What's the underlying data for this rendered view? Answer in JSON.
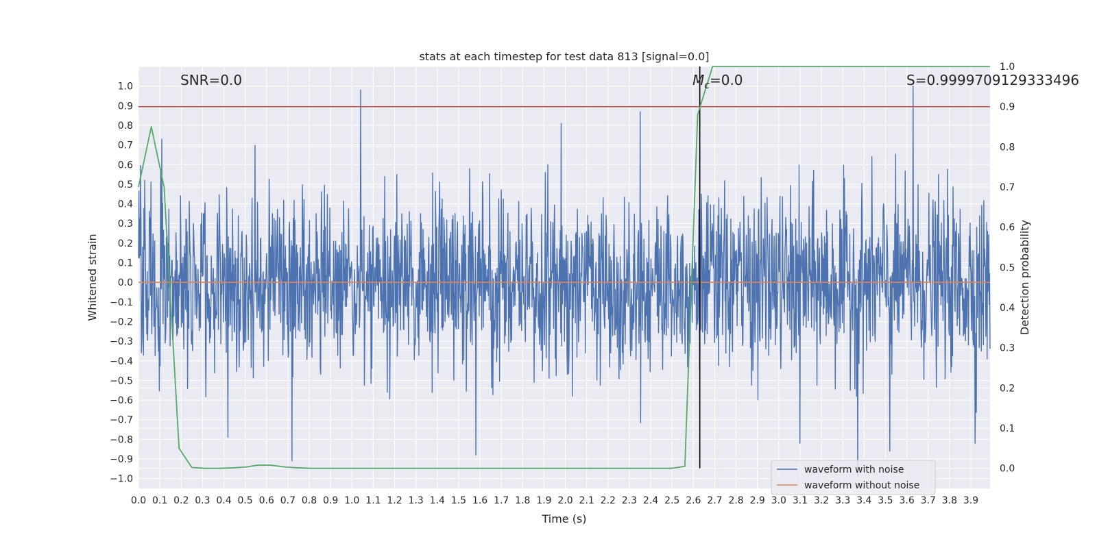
{
  "chart_data": {
    "type": "line",
    "title": "stats at each timestep for test data 813 [signal=0.0]",
    "xlabel": "Time (s)",
    "ylabel": "Whitened strain",
    "y2label": "Detection probability",
    "xlim": [
      0.0,
      3.99
    ],
    "ylim": [
      -1.05,
      1.1
    ],
    "y2lim": [
      -0.05,
      1.0
    ],
    "x_ticks": [
      0.0,
      0.1,
      0.2,
      0.3,
      0.4,
      0.5,
      0.6,
      0.7,
      0.8,
      0.9,
      1.0,
      1.1,
      1.2,
      1.3,
      1.4,
      1.5,
      1.6,
      1.7,
      1.8,
      1.9,
      2.0,
      2.1,
      2.2,
      2.3,
      2.4,
      2.5,
      2.6,
      2.7,
      2.8,
      2.9,
      3.0,
      3.1,
      3.2,
      3.3,
      3.4,
      3.5,
      3.6,
      3.7,
      3.8,
      3.9
    ],
    "y_ticks": [
      1.0,
      0.9,
      0.8,
      0.7,
      0.6,
      0.5,
      0.4,
      0.3,
      0.2,
      0.1,
      0.0,
      -0.1,
      -0.2,
      -0.3,
      -0.4,
      -0.5,
      -0.6,
      -0.7,
      -0.8,
      -0.9,
      -1.0
    ],
    "y2_ticks": [
      1.0,
      0.9,
      0.8,
      0.7,
      0.6,
      0.5,
      0.4,
      0.3,
      0.2,
      0.1,
      0.0
    ],
    "grid": true,
    "legend_position": "bottom-right",
    "annotations": {
      "snr": "SNR=0.0",
      "mc_prefix": "M",
      "mc_sub": "c",
      "mc_suffix": "=0.0",
      "s": "S=0.9999709129333496"
    },
    "threshold_line": {
      "axis": "y2",
      "value": 0.9,
      "color": "#c44e52"
    },
    "vertical_marker": {
      "x": 2.63,
      "y2_range": [
        0.0,
        1.0
      ],
      "color": "#000000"
    },
    "series": [
      {
        "name": "waveform with noise",
        "color": "#4c72b0",
        "axis": "y",
        "kind": "noise",
        "amplitude_std": 0.22,
        "points": 2048,
        "notable_peaks": [
          {
            "x": 1.04,
            "y": 0.98
          },
          {
            "x": 3.63,
            "y": 1.0
          },
          {
            "x": 2.35,
            "y": 0.87
          },
          {
            "x": 1.98,
            "y": 0.81
          },
          {
            "x": 3.37,
            "y": -0.99
          },
          {
            "x": 0.72,
            "y": -0.91
          },
          {
            "x": 1.58,
            "y": -0.88
          },
          {
            "x": 3.52,
            "y": -0.86
          },
          {
            "x": 3.1,
            "y": -0.82
          },
          {
            "x": 3.92,
            "y": -0.82
          },
          {
            "x": 0.42,
            "y": -0.79
          }
        ]
      },
      {
        "name": "waveform without noise",
        "color": "#dd8452",
        "axis": "y",
        "x": [
          0.0,
          3.99
        ],
        "values": [
          0.0,
          0.0
        ]
      },
      {
        "name": "detection probability",
        "color": "#55a868",
        "axis": "y2",
        "x": [
          0.0,
          0.06,
          0.12,
          0.19,
          0.25,
          0.31,
          0.38,
          0.44,
          0.5,
          0.56,
          0.62,
          0.69,
          0.75,
          0.81,
          2.5,
          2.56,
          2.62,
          2.69,
          3.99
        ],
        "values": [
          0.7,
          0.85,
          0.7,
          0.05,
          0.002,
          0.0,
          0.0,
          0.001,
          0.003,
          0.008,
          0.008,
          0.003,
          0.001,
          0.0,
          0.0,
          0.005,
          0.88,
          1.0,
          1.0
        ]
      }
    ]
  }
}
